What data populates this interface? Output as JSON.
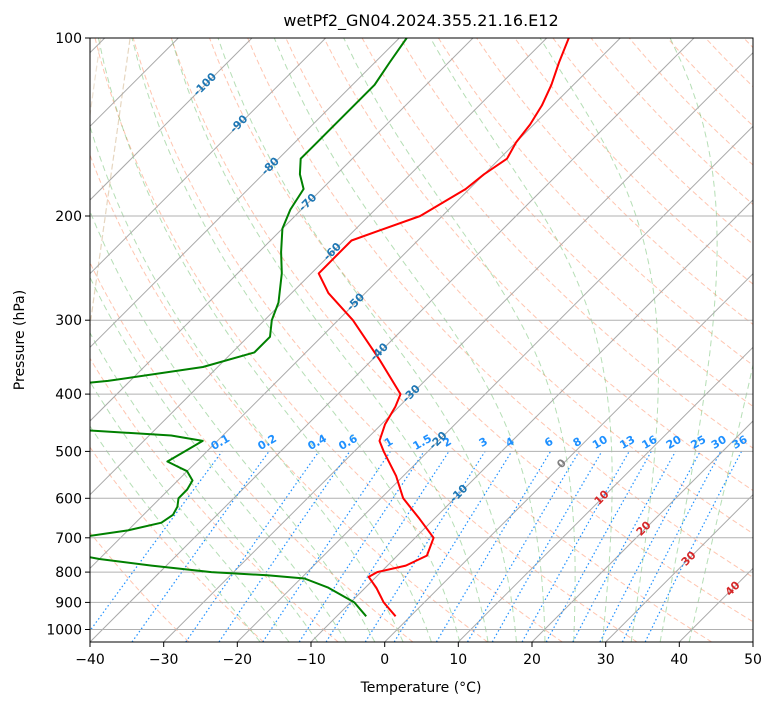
{
  "chart_data": {
    "type": "line",
    "subtype": "skew-t log-p diagram",
    "title": "wetPf2_GN04.2024.355.21.16.E12",
    "xlabel": "Temperature (°C)",
    "ylabel": "Pressure (hPa)",
    "xlim": [
      -40,
      50
    ],
    "ylim": [
      1050,
      100
    ],
    "y_scale": "log",
    "x_ticks": [
      -40,
      -30,
      -20,
      -10,
      0,
      10,
      20,
      30,
      40,
      50
    ],
    "x_tick_labels": [
      "−40",
      "−30",
      "−20",
      "−10",
      "0",
      "10",
      "20",
      "30",
      "40",
      "50"
    ],
    "y_ticks": [
      1000,
      900,
      800,
      700,
      600,
      500,
      400,
      300,
      200,
      100
    ],
    "y_tick_labels": [
      "1000",
      "900",
      "800",
      "700",
      "600",
      "500",
      "400",
      "300",
      "200",
      "100"
    ],
    "grid": true,
    "series": [
      {
        "role": "temperature",
        "color": "#ff0000",
        "pressure": [
          950,
          900,
          850,
          815,
          800,
          780,
          750,
          700,
          650,
          600,
          550,
          500,
          480,
          450,
          420,
          400,
          350,
          300,
          270,
          250,
          220,
          200,
          180,
          170,
          160,
          150,
          140,
          130,
          120,
          110,
          100
        ],
        "temperature": [
          -2.0,
          -5.5,
          -8.5,
          -11.0,
          -10.5,
          -7.5,
          -6.0,
          -7.5,
          -12.0,
          -17.0,
          -21.0,
          -26.0,
          -28.0,
          -29.5,
          -30.5,
          -31.5,
          -39.0,
          -48.0,
          -55.0,
          -59.0,
          -59.0,
          -53.0,
          -50.5,
          -50.0,
          -49.0,
          -50.0,
          -50.5,
          -51.5,
          -53.0,
          -55.0,
          -57.0
        ]
      },
      {
        "role": "dewpoint",
        "color": "#008000",
        "pressure": [
          950,
          900,
          850,
          820,
          810,
          800,
          780,
          760,
          740,
          725,
          715,
          700,
          680,
          660,
          640,
          620,
          600,
          580,
          560,
          540,
          530,
          520,
          500,
          480,
          470,
          460,
          450,
          420,
          400,
          380,
          360,
          340,
          320,
          300,
          280,
          250,
          230,
          210,
          195,
          180,
          170,
          160,
          150,
          140,
          130,
          120,
          110,
          100
        ],
        "dewpoint": [
          -6.0,
          -9.5,
          -15.0,
          -19.5,
          -25.0,
          -33.0,
          -42.0,
          -50.0,
          -56.0,
          -59.0,
          -60.0,
          -56.0,
          -50.0,
          -46.5,
          -46.0,
          -46.5,
          -47.5,
          -47.5,
          -48.0,
          -50.0,
          -52.0,
          -54.0,
          -53.0,
          -52.0,
          -57.0,
          -70.0,
          -90.0,
          -95.0,
          -90.0,
          -73.0,
          -62.0,
          -57.0,
          -57.0,
          -59.0,
          -60.5,
          -64.0,
          -67.0,
          -70.0,
          -71.5,
          -72.5,
          -75.0,
          -77.0,
          -77.0,
          -77.0,
          -77.0,
          -77.0,
          -78.0,
          -79.0
        ]
      }
    ],
    "isotherm_labels": [
      "-100",
      "-90",
      "-80",
      "-70",
      "-60",
      "-50",
      "-40",
      "-30",
      "-20",
      "-10",
      "0",
      "10",
      "20",
      "30",
      "40"
    ],
    "mixing_ratio_labels": [
      "0.1",
      "0.2",
      "0.4",
      "0.6",
      "1",
      "1.5",
      "2",
      "3",
      "4",
      "6",
      "8",
      "10",
      "13",
      "16",
      "20",
      "25",
      "30",
      "36"
    ],
    "background_lines": [
      "isotherms",
      "dry adiabats",
      "moist adiabats",
      "mixing ratio lines"
    ],
    "colors": {
      "temperature": "#ff0000",
      "dewpoint": "#008000",
      "isotherm_grid": "#a9a9a9",
      "isotherm_label_cold": "#1f77b4",
      "isotherm_label_zero": "#808080",
      "isotherm_label_warm": "#d62728",
      "dry_adiabat": "#ff7f50",
      "moist_adiabat": "#2ca02c",
      "mixing_ratio": "#1e90ff",
      "mixing_ratio_label": "#1e90ff",
      "wet_bulb_curve": "#d2b48c"
    }
  }
}
